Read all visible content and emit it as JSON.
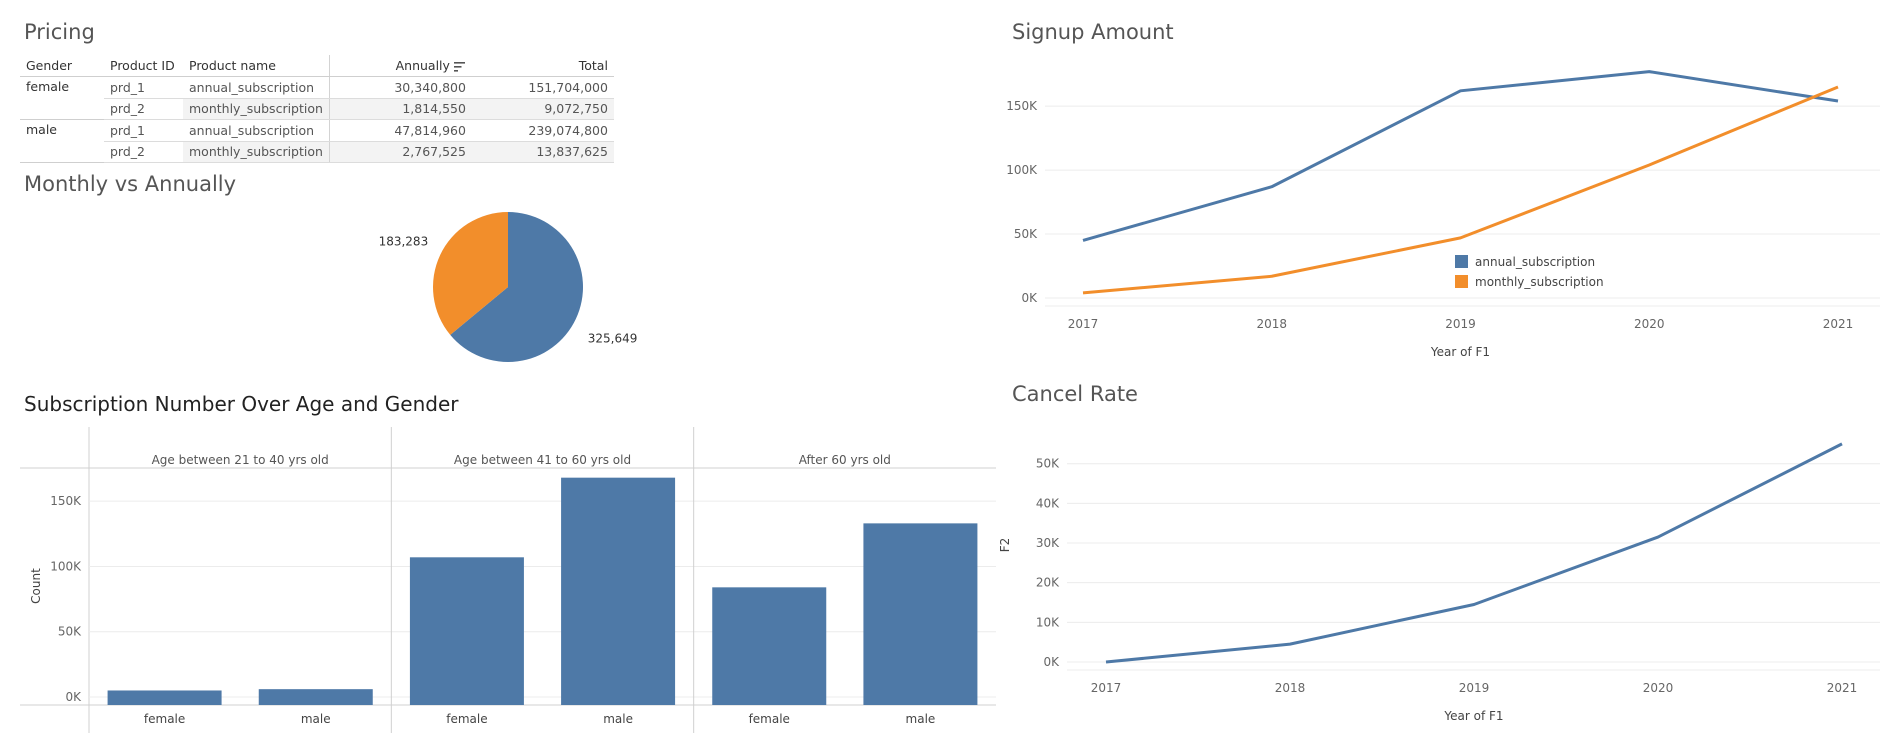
{
  "pricing": {
    "title": "Pricing",
    "headers": {
      "gender": "Gender",
      "product_id": "Product ID",
      "product_name": "Product name",
      "annually": "Annually",
      "total": "Total"
    },
    "groups": [
      {
        "gender": "female",
        "rows": [
          {
            "product_id": "prd_1",
            "product_name": "annual_subscription",
            "annually": "30,340,800",
            "total": "151,704,000"
          },
          {
            "product_id": "prd_2",
            "product_name": "monthly_subscription",
            "annually": "1,814,550",
            "total": "9,072,750"
          }
        ]
      },
      {
        "gender": "male",
        "rows": [
          {
            "product_id": "prd_1",
            "product_name": "annual_subscription",
            "annually": "47,814,960",
            "total": "239,074,800"
          },
          {
            "product_id": "prd_2",
            "product_name": "monthly_subscription",
            "annually": "2,767,525",
            "total": "13,837,625"
          }
        ]
      }
    ],
    "sort_icon": "sort-descending-icon"
  },
  "colors": {
    "blue": "#4e79a7",
    "orange": "#f28e2b",
    "grid": "#ececec",
    "axis": "#d0d0d0",
    "tick": "#666666"
  },
  "chart_data": [
    {
      "id": "pie",
      "type": "pie",
      "title": "Monthly vs Annually",
      "slices": [
        {
          "label": "325,649",
          "value": 325649,
          "color": "#4e79a7"
        },
        {
          "label": "183,283",
          "value": 183283,
          "color": "#f28e2b"
        }
      ]
    },
    {
      "id": "signup",
      "type": "line",
      "title": "Signup Amount",
      "x": [
        "2017",
        "2018",
        "2019",
        "2020",
        "2021"
      ],
      "xlabel": "Year of F1",
      "ylabel": "",
      "y_ticks": [
        "0K",
        "50K",
        "100K",
        "150K"
      ],
      "ylim": [
        0,
        190000
      ],
      "series": [
        {
          "name": "annual_subscription",
          "color": "#4e79a7",
          "values": [
            45000,
            87000,
            162000,
            177000,
            154000
          ]
        },
        {
          "name": "monthly_subscription",
          "color": "#f28e2b",
          "values": [
            4000,
            17000,
            47000,
            104000,
            165000
          ]
        }
      ],
      "legend": "inside-bottom-center"
    },
    {
      "id": "cancel",
      "type": "line",
      "title": "Cancel Rate",
      "x": [
        "2017",
        "2018",
        "2019",
        "2020",
        "2021"
      ],
      "xlabel": "Year of F1",
      "ylabel": "F2",
      "y_ticks": [
        "0K",
        "10K",
        "20K",
        "30K",
        "40K",
        "50K"
      ],
      "ylim": [
        0,
        59000
      ],
      "series": [
        {
          "color": "#4e79a7",
          "values": [
            0,
            4500,
            14500,
            31500,
            55000
          ]
        }
      ]
    },
    {
      "id": "age",
      "type": "bar",
      "title": "Subscription Number Over Age and Gender",
      "ylabel": "Count",
      "y_ticks": [
        "0K",
        "50K",
        "100K",
        "150K"
      ],
      "ylim": [
        0,
        180000
      ],
      "panels": [
        {
          "label": "Age between 21 to 40 yrs old",
          "categories": [
            "female",
            "male"
          ],
          "values": [
            5000,
            6000
          ]
        },
        {
          "label": "Age between 41 to 60 yrs old",
          "categories": [
            "female",
            "male"
          ],
          "values": [
            107000,
            168000
          ]
        },
        {
          "label": "After 60 yrs old",
          "categories": [
            "female",
            "male"
          ],
          "values": [
            84000,
            133000
          ]
        }
      ],
      "color": "#4e79a7"
    }
  ]
}
